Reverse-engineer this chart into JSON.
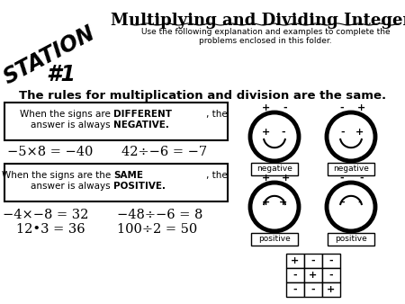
{
  "title": "Multiplying and Dividing Integers",
  "subtitle_line1": "Use the following explanation and examples to complete the",
  "subtitle_line2": "problems enclosed in this folder.",
  "station_line1": "STATION",
  "station_line2": "#1",
  "rules_title": "The rules for multiplication and division are the same.",
  "box1_text1": "When the signs are ",
  "box1_bold1": "DIFFERENT",
  "box1_text1b": ", the",
  "box1_text2a": "answer is always ",
  "box1_bold2": "NEGATIVE.",
  "example1a": "−5×8 = −40",
  "example1b": "42÷−6 = −7",
  "box2_text1": "When the signs are the ",
  "box2_bold1": "SAME",
  "box2_text1b": ", the",
  "box2_text2a": "answer is always ",
  "box2_bold2": "POSITIVE.",
  "example2_line1a": "−4×−8 = 32",
  "example2_line1b": "−48÷−6 = 8",
  "example2_line2a": "12•3 = 36",
  "example2_line2b": "100÷2 = 50",
  "bg_color": "#ffffff",
  "text_color": "#000000",
  "label_negative": "negative",
  "label_positive": "positive",
  "grid_signs": [
    [
      "+",
      "-",
      "-"
    ],
    [
      "-",
      "+",
      "-"
    ],
    [
      "-",
      "-",
      "+"
    ]
  ]
}
